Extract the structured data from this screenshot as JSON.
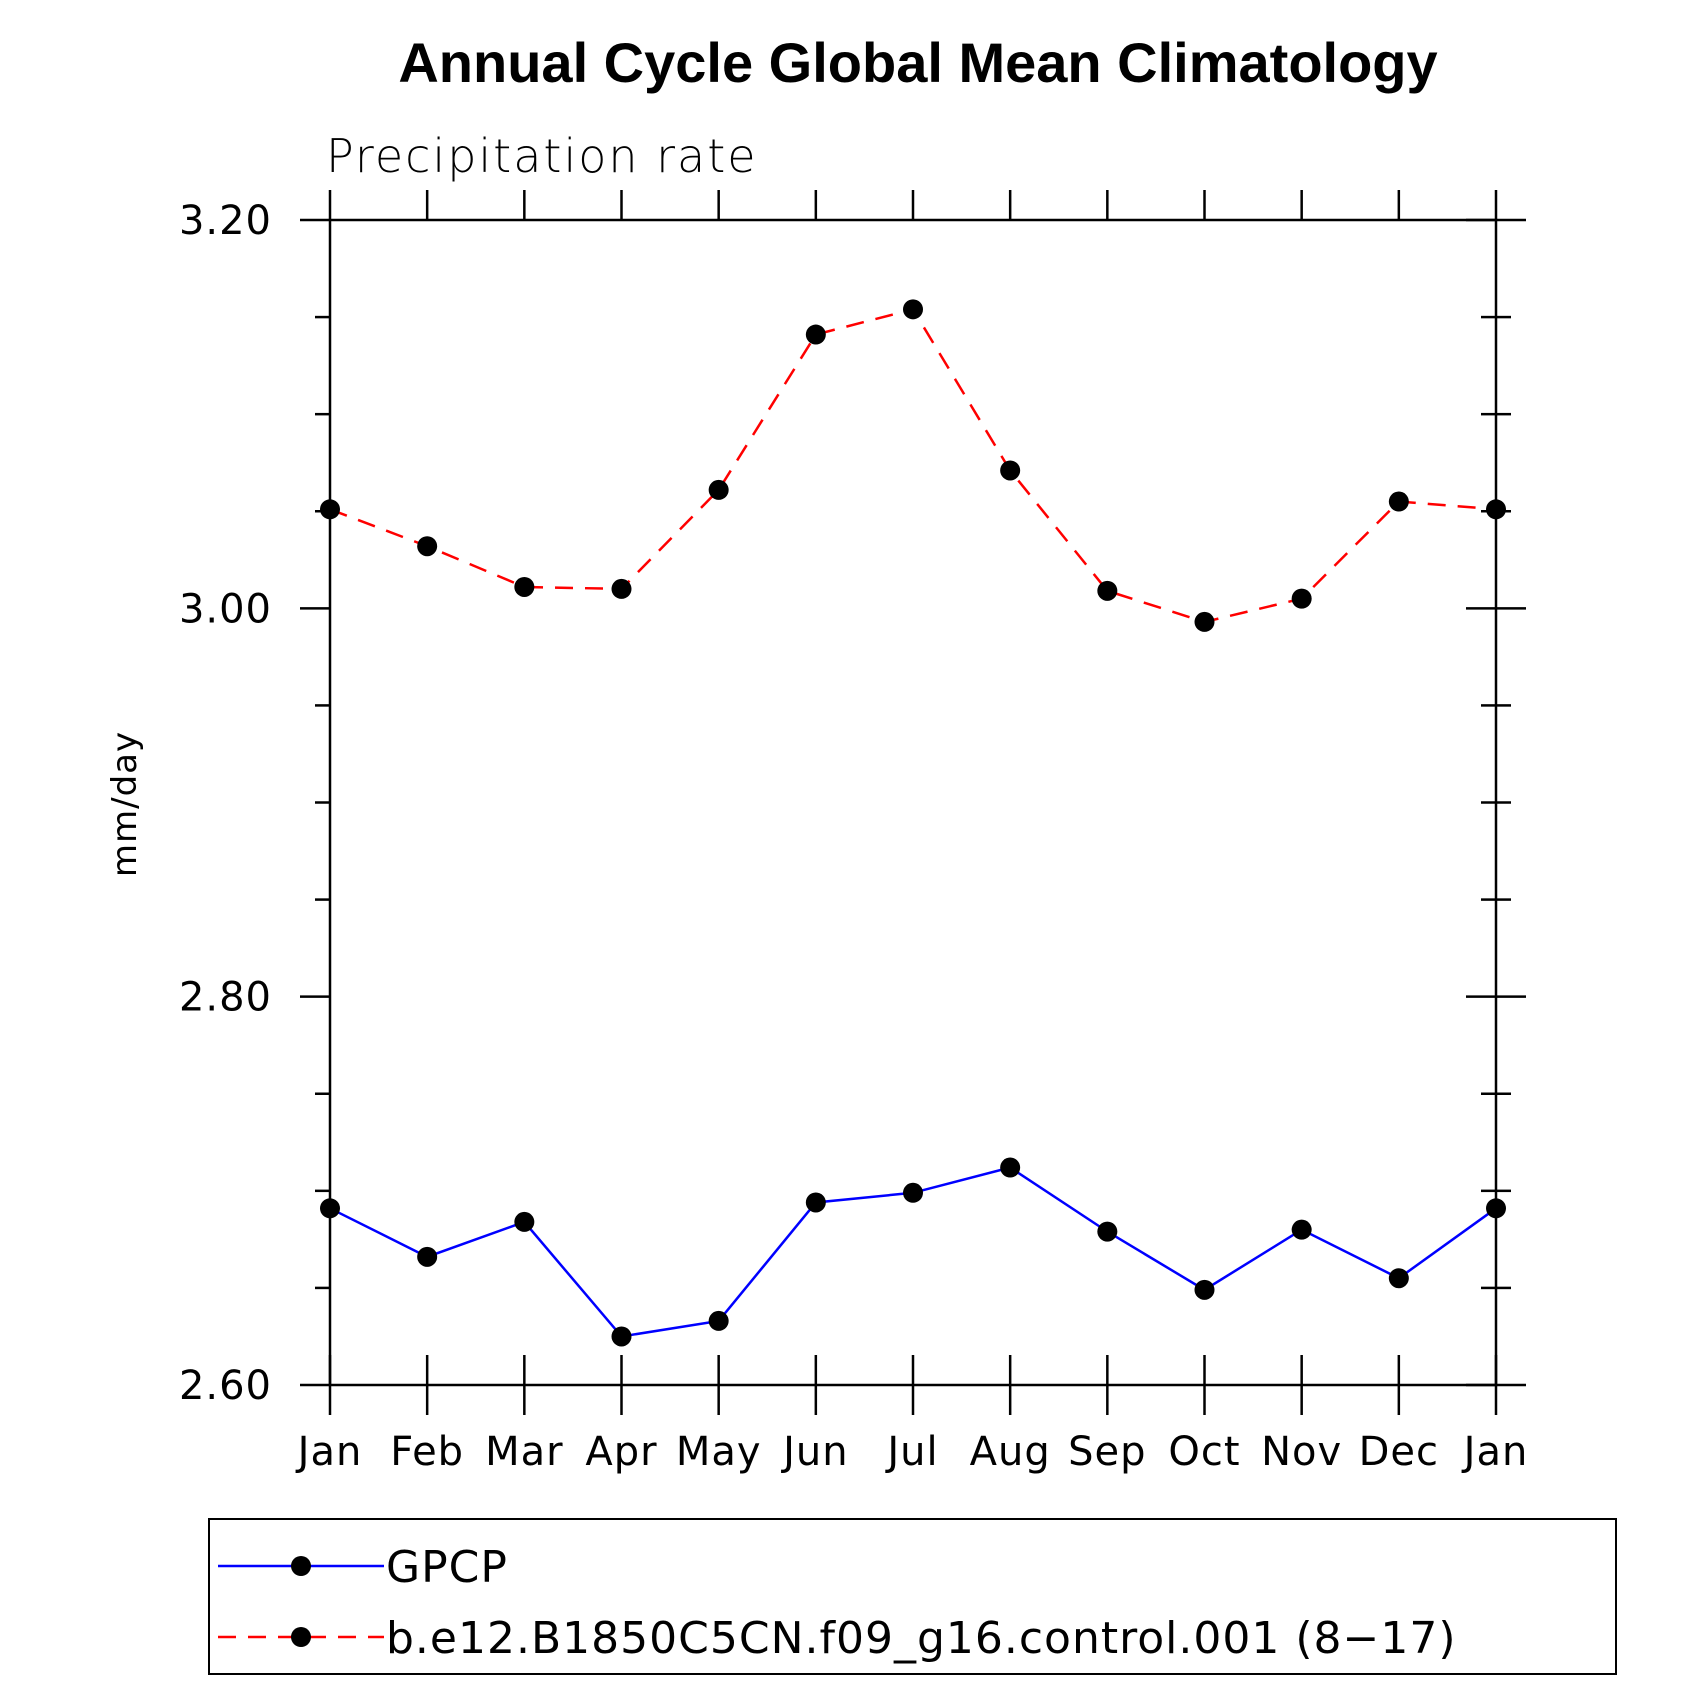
{
  "chart_data": {
    "type": "line",
    "title": "Annual Cycle Global Mean Climatology",
    "subtitle": "Precipitation rate",
    "xlabel": "",
    "ylabel": "mm/day",
    "categories": [
      "Jan",
      "Feb",
      "Mar",
      "Apr",
      "May",
      "Jun",
      "Jul",
      "Aug",
      "Sep",
      "Oct",
      "Nov",
      "Dec",
      "Jan"
    ],
    "ylim": [
      2.6,
      3.2
    ],
    "yticks": [
      "2.60",
      "2.80",
      "3.00",
      "3.20"
    ],
    "ytick_values": [
      2.6,
      2.8,
      3.0,
      3.2
    ],
    "yminor_step": 0.05,
    "grid": false,
    "legend_position": "bottom",
    "series": [
      {
        "name": "GPCP",
        "color": "#0000ff",
        "line_style": "solid",
        "marker": "filled-circle",
        "values": [
          2.691,
          2.666,
          2.684,
          2.625,
          2.633,
          2.694,
          2.699,
          2.712,
          2.679,
          2.649,
          2.68,
          2.655,
          2.691
        ]
      },
      {
        "name": "b.e12.B1850C5CN.f09_g16.control.001 (8−17)",
        "color": "#ff0000",
        "line_style": "dashed",
        "marker": "filled-circle",
        "values": [
          3.051,
          3.032,
          3.011,
          3.01,
          3.061,
          3.141,
          3.154,
          3.071,
          3.009,
          2.993,
          3.005,
          3.055,
          3.051
        ]
      }
    ]
  }
}
